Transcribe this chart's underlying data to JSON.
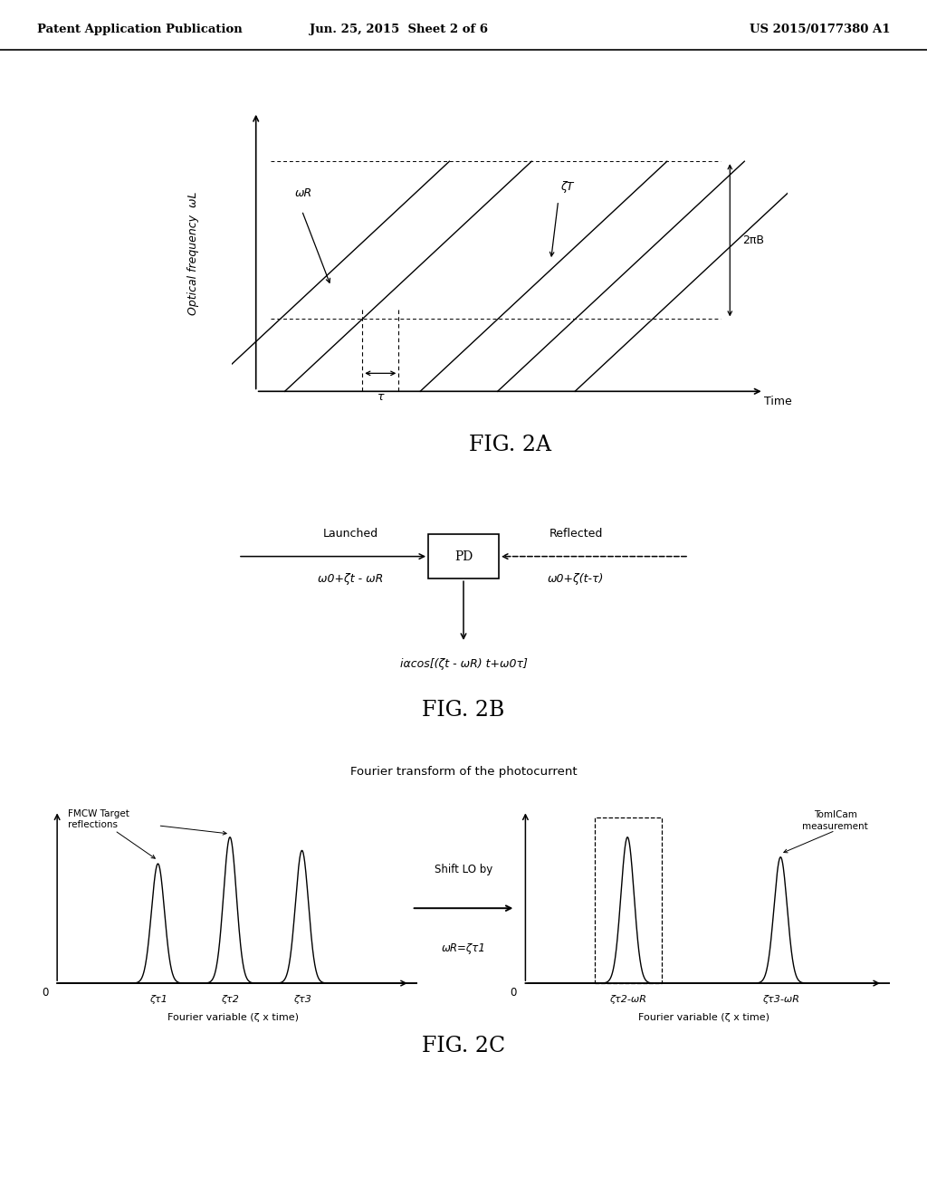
{
  "header_left": "Patent Application Publication",
  "header_center": "Jun. 25, 2015  Sheet 2 of 6",
  "header_right": "US 2015/0177380 A1",
  "fig2a_ylabel": "Optical frequency  ωL",
  "fig2a_xlabel": "Time",
  "fig2a_label_2piB": "2πB",
  "fig2a_label_omegaR": "ωR",
  "fig2a_label_zetaT": "ζT",
  "fig2a_label_tau": "τ",
  "fig2a_title": "FIG. 2A",
  "fig2b_title": "FIG. 2B",
  "fig2b_box_label": "PD",
  "fig2b_launched_label": "Launched",
  "fig2b_reflected_label": "Reflected",
  "fig2b_left_formula": "ω0+ζt - ωR",
  "fig2b_right_formula": "ω0+ζ(t-τ)",
  "fig2b_bottom_formula": "iαcos[(ζt - ωR) t+ω0τ]",
  "fig2c_title": "FIG. 2C",
  "fig2c_top_label": "Fourier transform of the photocurrent",
  "fig2c_left_annotation": "FMCW Target\nreflections",
  "fig2c_right_annotation": "TomICam\nmeasurement",
  "fig2c_shift_label": "Shift LO by",
  "fig2c_shift_formula": "ωR=ζτ1",
  "fig2c_left_xlabel": "Fourier variable (ζ x time)",
  "fig2c_right_xlabel": "Fourier variable (ζ x time)",
  "fig2c_left_xticks_labels": [
    "ζτ1",
    "ζτ2",
    "ζτ3"
  ],
  "fig2c_right_xticks_labels": [
    "ζτ2-ωR",
    "ζτ3-ωR"
  ],
  "background_color": "#ffffff",
  "line_color": "#000000",
  "text_color": "#000000"
}
